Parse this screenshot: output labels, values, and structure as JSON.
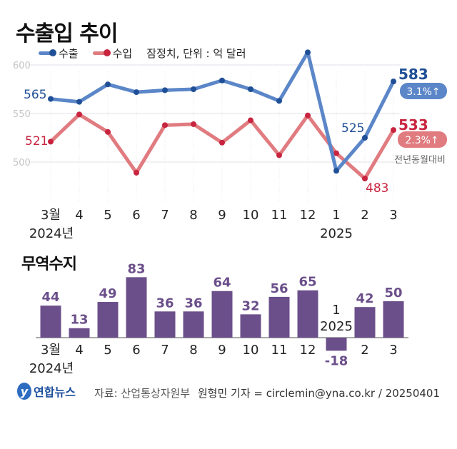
{
  "title": "수출입 추이",
  "legend": {
    "export": "수출",
    "import": "수입",
    "note": "잠정치, 단위 : 억 달러"
  },
  "colors": {
    "export_line": "#5b86c8",
    "export_dot": "#1f4f96",
    "import_line": "#e07b80",
    "import_dot": "#c8243f",
    "bar": "#6b4f8a",
    "bar_label": "#6b4f8a"
  },
  "chart_data": [
    {
      "type": "line",
      "title": "수출입 추이",
      "categories": [
        "3월",
        "4",
        "5",
        "6",
        "7",
        "8",
        "9",
        "10",
        "11",
        "12",
        "1",
        "2",
        "3"
      ],
      "year_labels": {
        "first": "2024년",
        "jan": "2025"
      },
      "yticks": [
        500,
        550,
        600
      ],
      "ylim": [
        460,
        625
      ],
      "grid": true,
      "legend_placement": "top-left",
      "series": [
        {
          "name": "수출",
          "values": [
            565,
            562,
            580,
            572,
            574,
            575,
            584,
            575,
            563,
            613,
            491,
            525,
            583
          ]
        },
        {
          "name": "수입",
          "values": [
            521,
            549,
            531,
            489,
            538,
            539,
            520,
            543,
            507,
            548,
            509,
            483,
            533
          ]
        }
      ],
      "annotations": {
        "export_first": "565",
        "import_first": "521",
        "export_feb": "525",
        "import_feb": "483",
        "export_last": "583",
        "import_last": "533",
        "export_yoy": "3.1%↑",
        "import_yoy": "2.3%↑",
        "yoy_caption": "전년동월대비"
      }
    },
    {
      "type": "bar",
      "title": "무역수지",
      "categories": [
        "3월",
        "4",
        "5",
        "6",
        "7",
        "8",
        "9",
        "10",
        "11",
        "12",
        "1",
        "2",
        "3"
      ],
      "year_labels": {
        "first": "2024년",
        "jan": "2025"
      },
      "values": [
        44,
        13,
        49,
        83,
        36,
        36,
        64,
        32,
        56,
        65,
        -18,
        42,
        50
      ]
    }
  ],
  "footer": {
    "logo": "연합뉴스",
    "source": "자료: 산업통상자원부",
    "credit": "원형민 기자 = circlemin@yna.co.kr / 20250401"
  }
}
